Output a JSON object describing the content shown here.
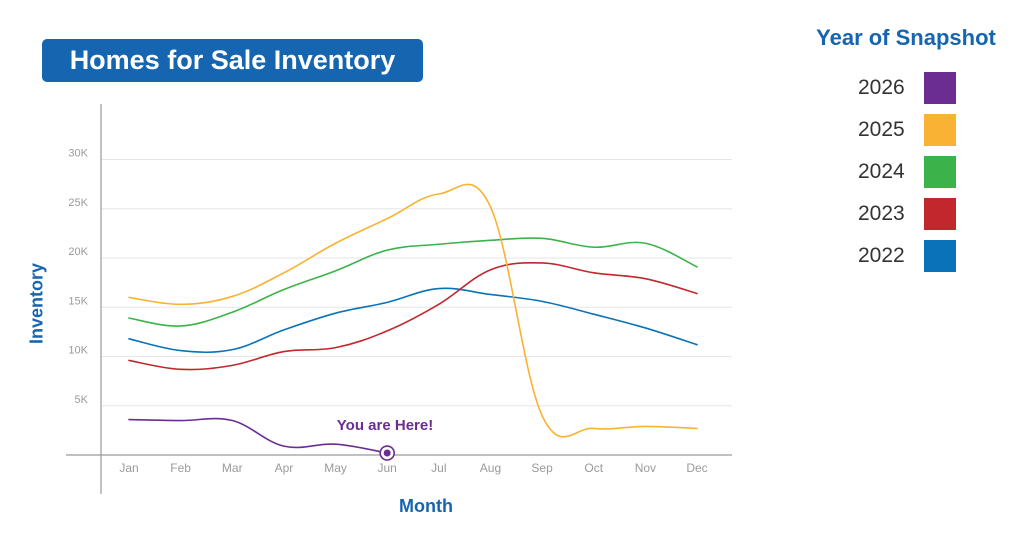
{
  "chart_data": {
    "type": "line",
    "title": "Homes for Sale Inventory",
    "xlabel": "Month",
    "ylabel": "Inventory",
    "categories": [
      "Jan",
      "Feb",
      "Mar",
      "Apr",
      "May",
      "Jun",
      "Jul",
      "Aug",
      "Sep",
      "Oct",
      "Nov",
      "Dec"
    ],
    "y_ticks": [
      {
        "value": 5000,
        "label": "5K"
      },
      {
        "value": 10000,
        "label": "10K"
      },
      {
        "value": 15000,
        "label": "15K"
      },
      {
        "value": 20000,
        "label": "20K"
      },
      {
        "value": 25000,
        "label": "25K"
      },
      {
        "value": 30000,
        "label": "30K"
      }
    ],
    "ylim": [
      0,
      33000
    ],
    "grid": true,
    "legend": {
      "title": "Year of Snapshot",
      "placement": "right"
    },
    "annotation": {
      "text": "You are Here!",
      "category": "Jun",
      "value": 200
    },
    "series": [
      {
        "name": "2026",
        "color": "#6b2d91",
        "values": [
          3600,
          3500,
          3500,
          900,
          1100,
          200,
          null,
          null,
          null,
          null,
          null,
          null
        ]
      },
      {
        "name": "2025",
        "color": "#f9b233",
        "values": [
          16000,
          15300,
          16100,
          18500,
          21500,
          24000,
          26500,
          25200,
          4000,
          2700,
          2900,
          2700
        ]
      },
      {
        "name": "2024",
        "color": "#3bb34a",
        "values": [
          13900,
          13100,
          14500,
          16800,
          18700,
          20800,
          21400,
          21800,
          22000,
          21100,
          21500,
          19100
        ]
      },
      {
        "name": "2023",
        "color": "#c1272d",
        "values": [
          9600,
          8700,
          9100,
          10500,
          10900,
          12600,
          15300,
          18800,
          19500,
          18500,
          17900,
          16400
        ]
      },
      {
        "name": "2022",
        "color": "#0a72b8",
        "values": [
          11800,
          10600,
          10700,
          12700,
          14400,
          15500,
          16900,
          16300,
          15600,
          14300,
          12900,
          11200
        ]
      }
    ]
  }
}
